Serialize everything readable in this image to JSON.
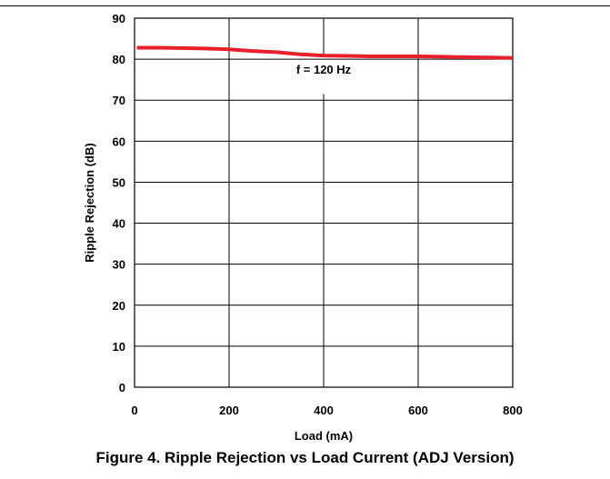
{
  "figure": {
    "caption": "Figure 4. Ripple Rejection vs Load Current (ADJ Version)"
  },
  "chart_data": {
    "type": "line",
    "xlabel": "Load (mA)",
    "ylabel": "Ripple Rejection (dB)",
    "xlim": [
      0,
      800
    ],
    "ylim": [
      0,
      90
    ],
    "x_ticks": [
      0,
      200,
      400,
      600,
      800
    ],
    "y_ticks": [
      0,
      10,
      20,
      30,
      40,
      50,
      60,
      70,
      80,
      90
    ],
    "grid": true,
    "annotations": [
      {
        "text": "f = 120 Hz",
        "x": 400,
        "y": 76.5
      }
    ],
    "series": [
      {
        "color": "#e8202a",
        "x": [
          5,
          50,
          100,
          150,
          200,
          250,
          300,
          350,
          400,
          450,
          500,
          550,
          600,
          650,
          700,
          750,
          800
        ],
        "y": [
          82.8,
          82.8,
          82.7,
          82.6,
          82.4,
          82.0,
          81.7,
          81.2,
          80.9,
          80.8,
          80.7,
          80.7,
          80.7,
          80.6,
          80.5,
          80.4,
          80.3
        ]
      }
    ]
  }
}
